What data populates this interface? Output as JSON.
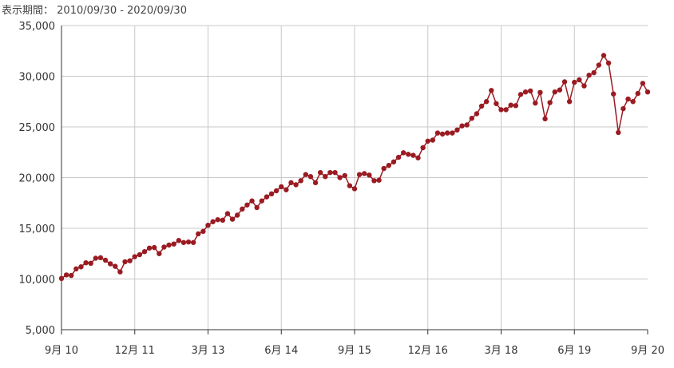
{
  "header": {
    "period_label": "表示期間：",
    "period_range": "2010/09/30 - 2020/09/30"
  },
  "colors": {
    "series": "#9a1b22",
    "grid": "#c8c8c8",
    "axis": "#333333"
  },
  "chart_data": {
    "type": "line",
    "title": "",
    "xlabel": "",
    "ylabel": "",
    "ylim": [
      5000,
      35000
    ],
    "y_ticks": [
      "5,000",
      "10,000",
      "15,000",
      "20,000",
      "25,000",
      "30,000",
      "35,000"
    ],
    "y_tick_values": [
      5000,
      10000,
      15000,
      20000,
      25000,
      30000,
      35000
    ],
    "x_ticks": [
      "9月 10",
      "12月 11",
      "3月 13",
      "6月 14",
      "9月 15",
      "12月 16",
      "3月 18",
      "6月 19",
      "9月 20"
    ],
    "grid": true,
    "legend": "none",
    "series": [
      {
        "values": [
          10050,
          10400,
          10350,
          11000,
          11200,
          11600,
          11550,
          12050,
          12100,
          11850,
          11500,
          11250,
          10700,
          11700,
          11800,
          12200,
          12400,
          12700,
          13050,
          13100,
          12500,
          13150,
          13350,
          13450,
          13800,
          13600,
          13650,
          13600,
          14450,
          14700,
          15300,
          15650,
          15850,
          15800,
          16450,
          15900,
          16300,
          16900,
          17300,
          17700,
          17050,
          17700,
          18100,
          18400,
          18700,
          19100,
          18800,
          19500,
          19300,
          19700,
          20300,
          20100,
          19500,
          20500,
          20100,
          20500,
          20500,
          20000,
          20200,
          19200,
          18900,
          20300,
          20400,
          20250,
          19700,
          19750,
          20900,
          21200,
          21550,
          22000,
          22450,
          22300,
          22200,
          21950,
          22950,
          23600,
          23700,
          24400,
          24300,
          24400,
          24400,
          24700,
          25100,
          25200,
          25850,
          26300,
          27050,
          27500,
          28600,
          27300,
          26700,
          26700,
          27150,
          27100,
          28200,
          28450,
          28550,
          27350,
          28400,
          25800,
          27400,
          28450,
          28650,
          29450,
          27500,
          29400,
          29650,
          29050,
          30100,
          30350,
          31100,
          32050,
          31300,
          28250,
          24450,
          26800,
          27750,
          27500,
          28300,
          29300,
          28450
        ]
      }
    ]
  }
}
